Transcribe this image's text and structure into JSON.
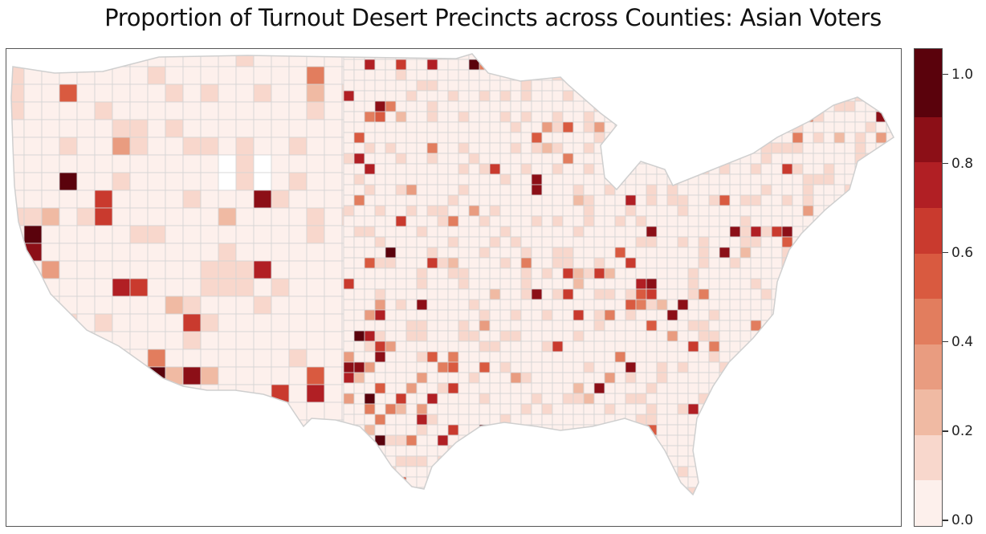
{
  "title": "Proportion of Turnout Desert Precincts across Counties: Asian Voters",
  "legend": {
    "bins": [
      {
        "from": 0.0,
        "to": 0.1,
        "color": "#fdf0ec"
      },
      {
        "from": 0.1,
        "to": 0.2,
        "color": "#f8d7cc"
      },
      {
        "from": 0.2,
        "to": 0.3,
        "color": "#f0baa3"
      },
      {
        "from": 0.3,
        "to": 0.4,
        "color": "#e99c80"
      },
      {
        "from": 0.4,
        "to": 0.5,
        "color": "#e27d5e"
      },
      {
        "from": 0.5,
        "to": 0.6,
        "color": "#d95a40"
      },
      {
        "from": 0.6,
        "to": 0.7,
        "color": "#c93a2e"
      },
      {
        "from": 0.7,
        "to": 0.8,
        "color": "#b11f24"
      },
      {
        "from": 0.8,
        "to": 0.9,
        "color": "#8c0f17"
      },
      {
        "from": 0.9,
        "to": 1.0,
        "color": "#5a020c"
      }
    ],
    "ticks": [
      {
        "value": 0.0,
        "label": "0.0"
      },
      {
        "value": 0.2,
        "label": "0.2"
      },
      {
        "value": 0.4,
        "label": "0.4"
      },
      {
        "value": 0.6,
        "label": "0.6"
      },
      {
        "value": 0.8,
        "label": "0.8"
      },
      {
        "value": 1.0,
        "label": "1.0"
      }
    ],
    "range": [
      0,
      1.05
    ]
  },
  "map": {
    "region": "Contiguous United States, counties",
    "no_data_color": "#ffffff",
    "border_color": "#d4d4d4"
  }
}
